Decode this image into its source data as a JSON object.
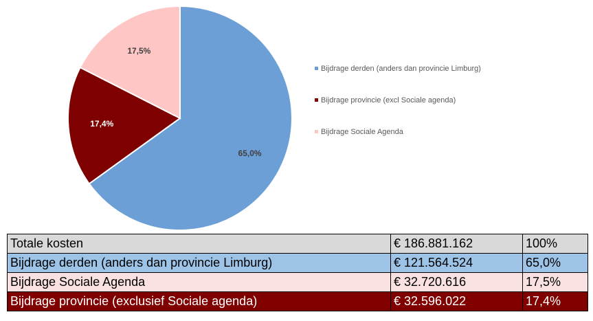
{
  "chart_data": {
    "type": "pie",
    "categories": [
      "Bijdrage derden (anders dan provincie Limburg)",
      "Bijdrage provincie (excl Sociale agenda)",
      "Bijdrage Sociale Agenda"
    ],
    "values": [
      65.0,
      17.4,
      17.5
    ],
    "value_labels": [
      "65,0%",
      "17,4%",
      "17,5%"
    ],
    "colors": [
      "#6b9fd6",
      "#7f0000",
      "#ffc6c6"
    ],
    "legend": "right"
  },
  "table": {
    "rows": [
      [
        "Totale kosten",
        "€ 186.881.162",
        "100%"
      ],
      [
        "Bijdrage derden (anders dan provincie Limburg)",
        "€ 121.564.524",
        "65,0%"
      ],
      [
        "Bijdrage Sociale Agenda",
        "€ 32.720.616",
        "17,5%"
      ],
      [
        "Bijdrage provincie (exclusief Sociale agenda)",
        "€ 32.596.022",
        "17,4%"
      ]
    ]
  }
}
